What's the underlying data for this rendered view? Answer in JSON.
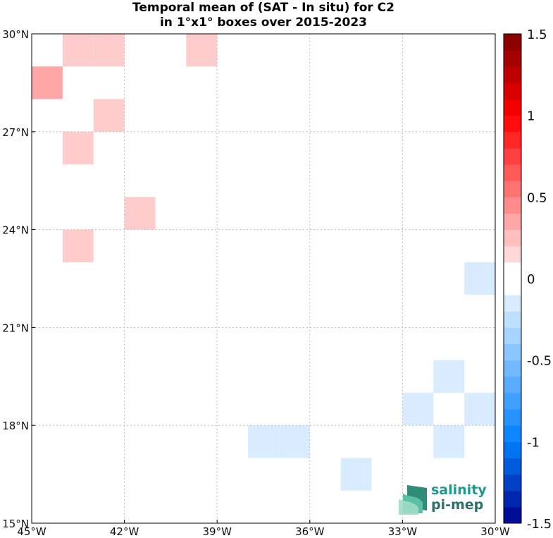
{
  "title_line1": "Temporal mean of (SAT - In situ) for C2",
  "title_line2": "in 1°x1° boxes over 2015-2023",
  "map": {
    "lon_range": [
      -45,
      -30
    ],
    "lat_range": [
      15,
      30
    ],
    "x_ticks": [
      {
        "value": -45,
        "label": "45°W"
      },
      {
        "value": -42,
        "label": "42°W"
      },
      {
        "value": -39,
        "label": "39°W"
      },
      {
        "value": -36,
        "label": "36°W"
      },
      {
        "value": -33,
        "label": "33°W"
      },
      {
        "value": -30,
        "label": "30°W"
      }
    ],
    "y_ticks": [
      {
        "value": 15,
        "label": "15°N"
      },
      {
        "value": 18,
        "label": "18°N"
      },
      {
        "value": 21,
        "label": "21°N"
      },
      {
        "value": 24,
        "label": "24°N"
      },
      {
        "value": 27,
        "label": "27°N"
      },
      {
        "value": 30,
        "label": "30°N"
      }
    ],
    "grid": true,
    "cells": [
      {
        "lon": -45,
        "lat": 28,
        "value": 0.35
      },
      {
        "lon": -44,
        "lat": 29,
        "value": 0.2
      },
      {
        "lon": -43,
        "lat": 29,
        "value": 0.2
      },
      {
        "lon": -40,
        "lat": 29,
        "value": 0.2
      },
      {
        "lon": -43,
        "lat": 27,
        "value": 0.2
      },
      {
        "lon": -44,
        "lat": 26,
        "value": 0.2
      },
      {
        "lon": -42,
        "lat": 24,
        "value": 0.2
      },
      {
        "lon": -44,
        "lat": 23,
        "value": 0.2
      },
      {
        "lon": -31,
        "lat": 22,
        "value": -0.15
      },
      {
        "lon": -32,
        "lat": 19,
        "value": -0.15
      },
      {
        "lon": -33,
        "lat": 18,
        "value": -0.15
      },
      {
        "lon": -31,
        "lat": 18,
        "value": -0.15
      },
      {
        "lon": -32,
        "lat": 17,
        "value": -0.15
      },
      {
        "lon": -38,
        "lat": 17,
        "value": -0.15
      },
      {
        "lon": -37,
        "lat": 17,
        "value": -0.15
      },
      {
        "lon": -35,
        "lat": 16,
        "value": -0.15
      }
    ]
  },
  "colorbar": {
    "range": [
      -1.5,
      1.5
    ],
    "step": 0.1,
    "tick_labels": [
      {
        "value": 1.5,
        "label": "1.5"
      },
      {
        "value": 1,
        "label": "1"
      },
      {
        "value": 0.5,
        "label": "0.5"
      },
      {
        "value": 0,
        "label": "0"
      },
      {
        "value": -0.5,
        "label": "-0.5"
      },
      {
        "value": -1,
        "label": "-1"
      },
      {
        "value": -1.5,
        "label": "-1.5"
      }
    ],
    "colors": {
      "positive_max": "#800000",
      "red": "#ff0000",
      "white": "#ffffff",
      "blue": "#0080ff",
      "negative_max": "#00008b"
    }
  },
  "logo": {
    "line1": "salinity",
    "line2": "pi-mep"
  }
}
